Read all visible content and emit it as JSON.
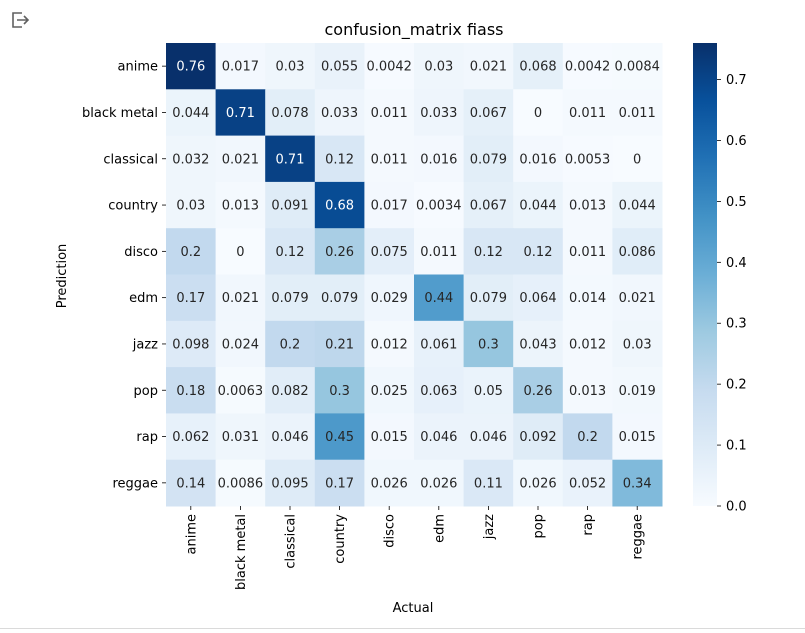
{
  "output_toggle_icon": "exit-to-app-icon",
  "chart_data": {
    "type": "heatmap",
    "title": "confusion_matrix fiass",
    "xlabel": "Actual",
    "ylabel": "Prediction",
    "x_categories": [
      "anime",
      "black metal",
      "classical",
      "country",
      "disco",
      "edm",
      "jazz",
      "pop",
      "rap",
      "reggae"
    ],
    "y_categories": [
      "anime",
      "black metal",
      "classical",
      "country",
      "disco",
      "edm",
      "jazz",
      "pop",
      "rap",
      "reggae"
    ],
    "values": [
      [
        0.76,
        0.017,
        0.03,
        0.055,
        0.0042,
        0.03,
        0.021,
        0.068,
        0.0042,
        0.0084
      ],
      [
        0.044,
        0.71,
        0.078,
        0.033,
        0.011,
        0.033,
        0.067,
        0,
        0.011,
        0.011
      ],
      [
        0.032,
        0.021,
        0.71,
        0.12,
        0.011,
        0.016,
        0.079,
        0.016,
        0.0053,
        0
      ],
      [
        0.03,
        0.013,
        0.091,
        0.68,
        0.017,
        0.0034,
        0.067,
        0.044,
        0.013,
        0.044
      ],
      [
        0.2,
        0,
        0.12,
        0.26,
        0.075,
        0.011,
        0.12,
        0.12,
        0.011,
        0.086
      ],
      [
        0.17,
        0.021,
        0.079,
        0.079,
        0.029,
        0.44,
        0.079,
        0.064,
        0.014,
        0.021
      ],
      [
        0.098,
        0.024,
        0.2,
        0.21,
        0.012,
        0.061,
        0.3,
        0.043,
        0.012,
        0.03
      ],
      [
        0.18,
        0.0063,
        0.082,
        0.3,
        0.025,
        0.063,
        0.05,
        0.26,
        0.013,
        0.019
      ],
      [
        0.062,
        0.031,
        0.046,
        0.45,
        0.015,
        0.046,
        0.046,
        0.092,
        0.2,
        0.015
      ],
      [
        0.14,
        0.0086,
        0.095,
        0.17,
        0.026,
        0.026,
        0.11,
        0.026,
        0.052,
        0.34
      ]
    ],
    "colormap": "Blues",
    "vmin": 0,
    "vmax": 0.76,
    "colorbar_ticks": [
      "0.0",
      "0.1",
      "0.2",
      "0.3",
      "0.4",
      "0.5",
      "0.6",
      "0.7"
    ],
    "colors": {
      "low": "#f7fbff",
      "high": "#08306b",
      "dark_text": "#262626",
      "light_text": "#ffffff"
    }
  }
}
